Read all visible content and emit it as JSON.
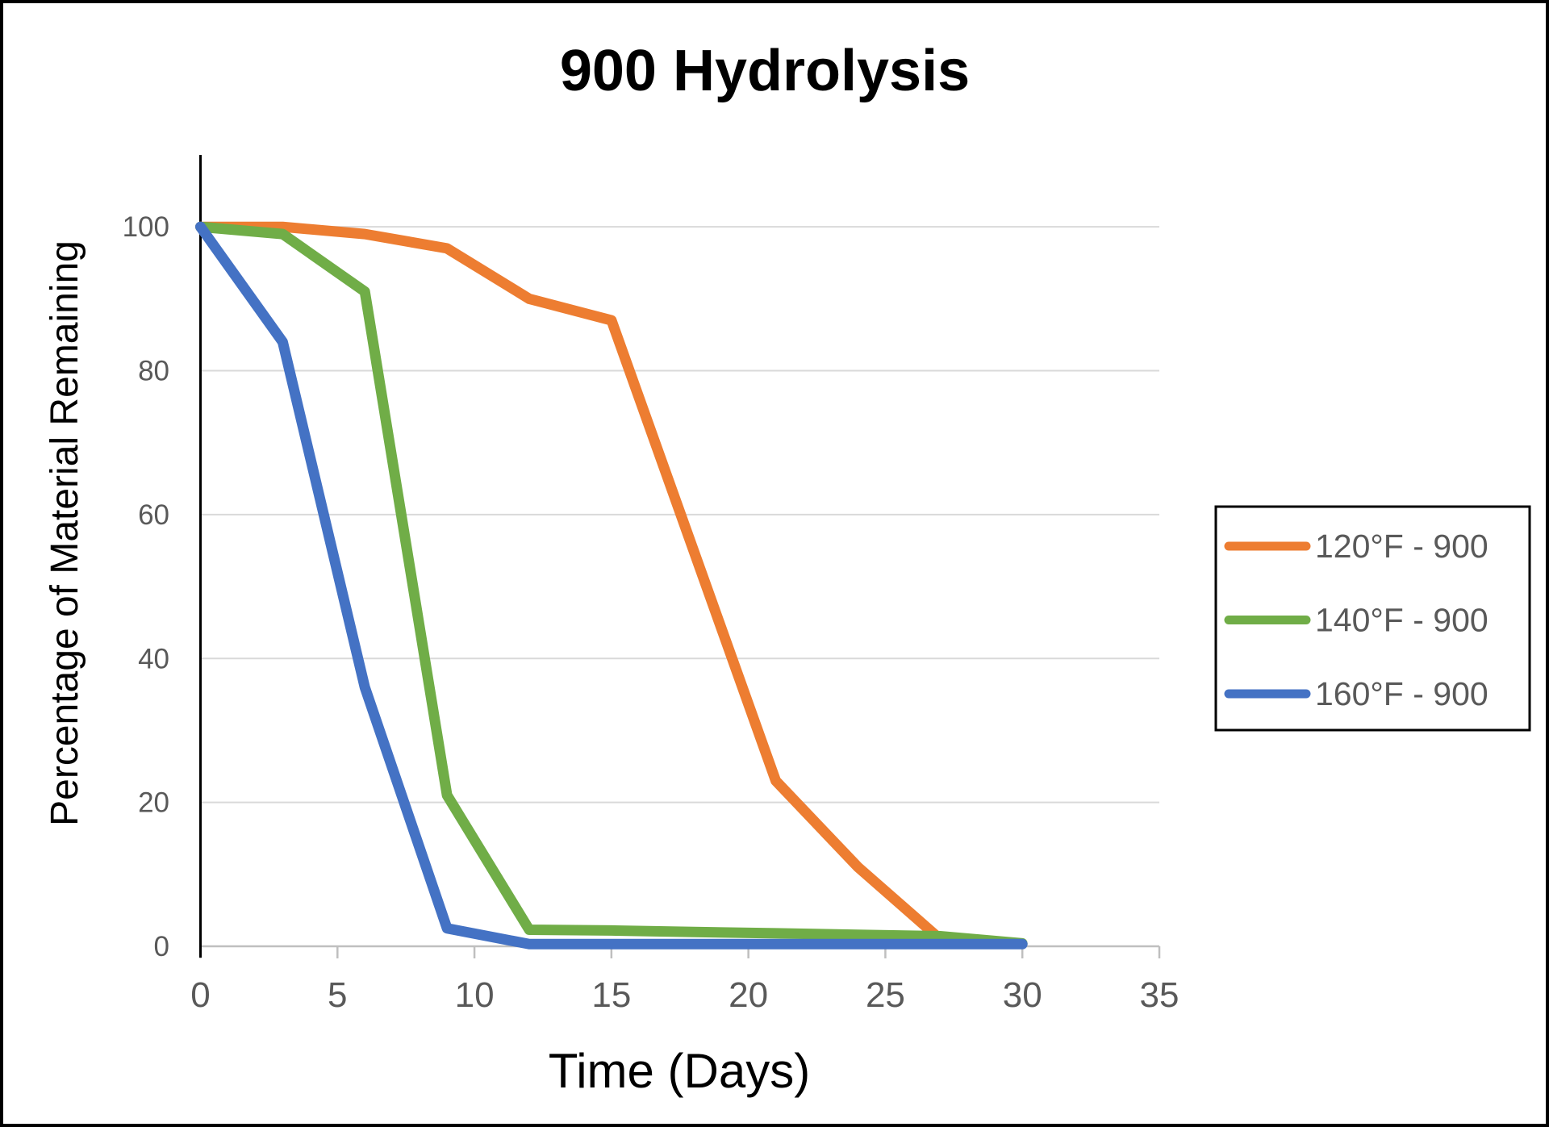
{
  "chart_data": {
    "type": "line",
    "title": "900 Hydrolysis",
    "xlabel": "Time (Days)",
    "ylabel": "Percentage of Material Remaining",
    "xlim": [
      0,
      35
    ],
    "ylim": [
      0,
      110
    ],
    "x_ticks": [
      0,
      5,
      10,
      15,
      20,
      25,
      30,
      35
    ],
    "y_ticks": [
      0,
      20,
      40,
      60,
      80,
      100
    ],
    "grid": "horizontal-only",
    "legend_position": "right",
    "series": [
      {
        "name": "120°F - 900",
        "color": "#ED7D31",
        "points": [
          [
            0,
            100
          ],
          [
            3,
            100
          ],
          [
            6,
            99
          ],
          [
            9,
            97
          ],
          [
            12,
            90
          ],
          [
            15,
            87
          ],
          [
            21,
            23
          ],
          [
            24,
            11
          ],
          [
            27,
            1
          ]
        ]
      },
      {
        "name": "140°F - 900",
        "color": "#70AD47",
        "points": [
          [
            0,
            100
          ],
          [
            3,
            99
          ],
          [
            6,
            91
          ],
          [
            9,
            21
          ],
          [
            12,
            2.3
          ],
          [
            15,
            2.2
          ],
          [
            18,
            2
          ],
          [
            21,
            1.8
          ],
          [
            24,
            1.6
          ],
          [
            27,
            1.4
          ],
          [
            30,
            0.4
          ]
        ]
      },
      {
        "name": "160°F - 900",
        "color": "#4472C4",
        "points": [
          [
            0,
            100
          ],
          [
            3,
            84
          ],
          [
            6,
            36
          ],
          [
            9,
            2.5
          ],
          [
            12,
            0.3
          ],
          [
            15,
            0.3
          ],
          [
            18,
            0.3
          ],
          [
            21,
            0.3
          ],
          [
            24,
            0.3
          ],
          [
            27,
            0.3
          ],
          [
            30,
            0.3
          ]
        ]
      }
    ]
  },
  "colors": {
    "tick_label": "#595959",
    "legend_text": "#595959",
    "gridline": "#D9D9D9",
    "baseline": "#BFBFBF",
    "y_axis_line": "#000000",
    "title_text": "#000000",
    "frame_border": "#000000",
    "background": "#FFFFFF"
  }
}
